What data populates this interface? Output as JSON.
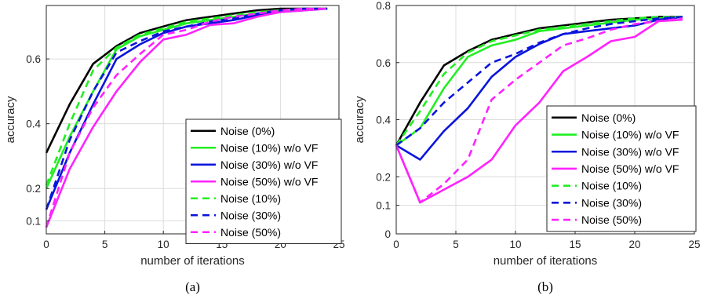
{
  "chart_data": [
    {
      "type": "line",
      "caption": "(a)",
      "xlabel": "number of iterations",
      "ylabel": "accuracy",
      "xlim": [
        0,
        25
      ],
      "ylim": [
        0.06,
        0.765
      ],
      "xticks": [
        0,
        5,
        10,
        15,
        20,
        25
      ],
      "yticks": [
        0.1,
        0.2,
        0.4,
        0.6
      ],
      "grid": true,
      "legend_position": "center-right",
      "x": [
        0,
        2,
        4,
        6,
        8,
        10,
        12,
        14,
        16,
        18,
        20,
        22,
        24
      ],
      "series": [
        {
          "name": "Noise (0%)",
          "color": "#000000",
          "dash": "solid",
          "values": [
            0.31,
            0.46,
            0.585,
            0.64,
            0.68,
            0.7,
            0.72,
            0.73,
            0.74,
            0.75,
            0.755,
            0.755,
            0.755
          ]
        },
        {
          "name": "Noise (10%) w/o VF",
          "color": "#22ee22",
          "dash": "solid",
          "values": [
            0.2,
            0.36,
            0.5,
            0.63,
            0.67,
            0.69,
            0.71,
            0.72,
            0.73,
            0.74,
            0.75,
            0.755,
            0.755
          ]
        },
        {
          "name": "Noise (30%) w/o VF",
          "color": "#0a14dc",
          "dash": "solid",
          "values": [
            0.135,
            0.31,
            0.46,
            0.6,
            0.645,
            0.68,
            0.7,
            0.71,
            0.72,
            0.735,
            0.745,
            0.75,
            0.755
          ]
        },
        {
          "name": "Noise (50%) w/o VF",
          "color": "#ff22ff",
          "dash": "solid",
          "values": [
            0.08,
            0.26,
            0.39,
            0.5,
            0.59,
            0.66,
            0.675,
            0.705,
            0.71,
            0.73,
            0.745,
            0.75,
            0.755
          ]
        },
        {
          "name": "Noise (10%)",
          "color": "#22ee22",
          "dash": "dashed",
          "values": [
            0.21,
            0.4,
            0.565,
            0.635,
            0.675,
            0.695,
            0.715,
            0.725,
            0.735,
            0.745,
            0.75,
            0.755,
            0.755
          ]
        },
        {
          "name": "Noise (30%)",
          "color": "#0a14dc",
          "dash": "dashed",
          "values": [
            0.135,
            0.35,
            0.5,
            0.62,
            0.655,
            0.685,
            0.7,
            0.715,
            0.725,
            0.74,
            0.75,
            0.755,
            0.755
          ]
        },
        {
          "name": "Noise (50%)",
          "color": "#ff22ff",
          "dash": "dashed",
          "values": [
            0.08,
            0.31,
            0.45,
            0.55,
            0.615,
            0.675,
            0.69,
            0.715,
            0.73,
            0.74,
            0.75,
            0.755,
            0.755
          ]
        }
      ]
    },
    {
      "type": "line",
      "caption": "(b)",
      "xlabel": "number of iterations",
      "ylabel": "accuracy",
      "xlim": [
        0,
        25
      ],
      "ylim": [
        0,
        0.8
      ],
      "xticks": [
        0,
        5,
        10,
        15,
        20,
        25
      ],
      "yticks": [
        0,
        0.1,
        0.2,
        0.4,
        0.6,
        0.8
      ],
      "grid": true,
      "legend_position": "bottom-right",
      "x": [
        0,
        2,
        4,
        6,
        8,
        10,
        12,
        14,
        16,
        18,
        20,
        22,
        24
      ],
      "series": [
        {
          "name": "Noise (0%)",
          "color": "#000000",
          "dash": "solid",
          "values": [
            0.31,
            0.46,
            0.59,
            0.64,
            0.68,
            0.7,
            0.72,
            0.73,
            0.74,
            0.75,
            0.755,
            0.76,
            0.76
          ]
        },
        {
          "name": "Noise (10%) w/o VF",
          "color": "#22ee22",
          "dash": "solid",
          "values": [
            0.31,
            0.37,
            0.51,
            0.62,
            0.66,
            0.68,
            0.71,
            0.72,
            0.73,
            0.74,
            0.75,
            0.755,
            0.76
          ]
        },
        {
          "name": "Noise (30%) w/o VF",
          "color": "#0a14dc",
          "dash": "solid",
          "values": [
            0.31,
            0.26,
            0.36,
            0.44,
            0.55,
            0.62,
            0.665,
            0.7,
            0.71,
            0.72,
            0.73,
            0.75,
            0.76
          ]
        },
        {
          "name": "Noise (50%) w/o VF",
          "color": "#ff22ff",
          "dash": "solid",
          "values": [
            0.31,
            0.11,
            0.155,
            0.2,
            0.26,
            0.38,
            0.46,
            0.57,
            0.62,
            0.675,
            0.69,
            0.745,
            0.75
          ]
        },
        {
          "name": "Noise (10%)",
          "color": "#22ee22",
          "dash": "dashed",
          "values": [
            0.31,
            0.43,
            0.56,
            0.635,
            0.675,
            0.695,
            0.715,
            0.725,
            0.735,
            0.745,
            0.755,
            0.76,
            0.76
          ]
        },
        {
          "name": "Noise (30%)",
          "color": "#0a14dc",
          "dash": "dashed",
          "values": [
            0.31,
            0.37,
            0.46,
            0.53,
            0.6,
            0.63,
            0.67,
            0.7,
            0.72,
            0.735,
            0.745,
            0.755,
            0.76
          ]
        },
        {
          "name": "Noise (50%)",
          "color": "#ff22ff",
          "dash": "dashed",
          "values": [
            0.31,
            0.11,
            0.175,
            0.26,
            0.47,
            0.54,
            0.6,
            0.66,
            0.685,
            0.715,
            0.735,
            0.745,
            0.755
          ]
        }
      ]
    }
  ]
}
